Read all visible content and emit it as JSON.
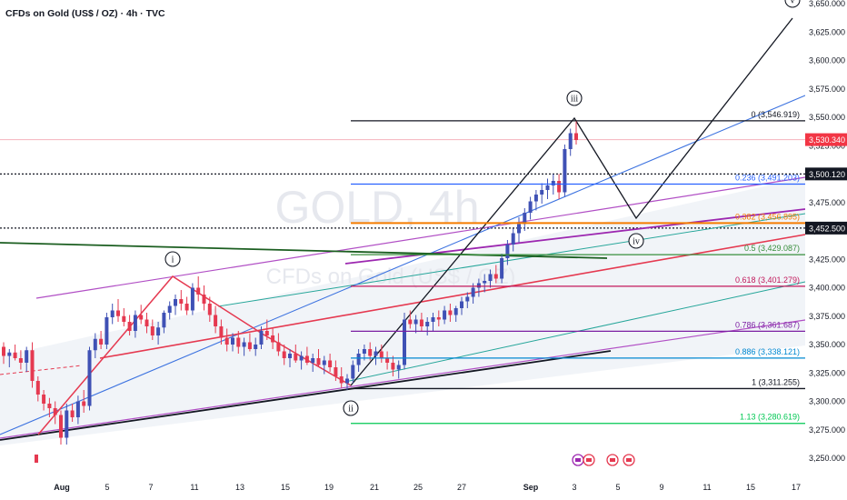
{
  "header": {
    "title": "CFDs on Gold (US$ / OZ) · 4h · TVC"
  },
  "watermark": {
    "big": "GOLD, 4h",
    "small": "CFDs on Gold (US$ / OZ)"
  },
  "colors": {
    "bull": "#3f51b5",
    "bear": "#e53950",
    "fib_line": "#131722",
    "wave_up": "#131722",
    "red_zigzag": "#e53950"
  },
  "chart_data": {
    "type": "candlestick",
    "title": "CFDs on Gold (US$ / OZ) · 4h · TVC",
    "ylim": [
      3237,
      3662
    ],
    "y_ticks": [
      3250,
      3275,
      3300,
      3325,
      3350,
      3375,
      3400,
      3425,
      3450,
      3475,
      3500,
      3525,
      3550,
      3575,
      3600,
      3625,
      3650
    ],
    "y_tick_labels": [
      "3,250.000",
      "3,275.000",
      "3,300.000",
      "3,325.000",
      "3,350.000",
      "3,375.000",
      "3,400.000",
      "3,425.000",
      "3,450.000",
      "3,475.000",
      "3,500.000",
      "3,525.000",
      "3,550.000",
      "3,575.000",
      "3,600.000",
      "3,625.000",
      "3,650.000"
    ],
    "x_ticks": [
      "Aug",
      "5",
      "7",
      "11",
      "13",
      "15",
      "19",
      "21",
      "25",
      "27",
      "Sep",
      "3",
      "5",
      "9",
      "11",
      "15",
      "17"
    ],
    "price_labels": [
      {
        "value": 3530.34,
        "text": "3,530.340",
        "style": "red"
      },
      {
        "value": 3500.12,
        "text": "3,500.120",
        "style": "dark"
      },
      {
        "value": 3452.5,
        "text": "3,452.500",
        "style": "dark"
      }
    ],
    "fibonacci": [
      {
        "ratio": "0",
        "value": 3546.919,
        "label": "0 (3,546.919)",
        "color": "#131722"
      },
      {
        "ratio": "0.236",
        "value": 3491.203,
        "label": "0.236 (3,491.203)",
        "color": "#2962ff"
      },
      {
        "ratio": "0.382",
        "value": 3456.895,
        "label": "0.382 (3,456.895)",
        "color": "#f57c00"
      },
      {
        "ratio": "0.5",
        "value": 3429.087,
        "label": "0.5 (3,429.087)",
        "color": "#388e3c"
      },
      {
        "ratio": "0.618",
        "value": 3401.279,
        "label": "0.618 (3,401.279)",
        "color": "#c2185b"
      },
      {
        "ratio": "0.786",
        "value": 3361.687,
        "label": "0.786 (3,361.687)",
        "color": "#7b1fa2"
      },
      {
        "ratio": "0.886",
        "value": 3338.121,
        "label": "0.886 (3,338.121)",
        "color": "#0288d1"
      },
      {
        "ratio": "1",
        "value": 3311.255,
        "label": "1 (3,311.255)",
        "color": "#131722"
      },
      {
        "ratio": "1.13",
        "value": 3280.619,
        "label": "1.13 (3,280.619)",
        "color": "#00c853"
      }
    ],
    "wave_labels": [
      "i",
      "ii",
      "iii",
      "iv",
      "v"
    ],
    "candles_ohlc": [
      [
        3348,
        3352,
        3333,
        3340
      ],
      [
        3340,
        3346,
        3330,
        3343
      ],
      [
        3343,
        3350,
        3336,
        3338
      ],
      [
        3338,
        3345,
        3328,
        3334
      ],
      [
        3334,
        3348,
        3326,
        3345
      ],
      [
        3345,
        3352,
        3312,
        3318
      ],
      [
        3318,
        3322,
        3300,
        3306
      ],
      [
        3306,
        3310,
        3292,
        3298
      ],
      [
        3298,
        3303,
        3286,
        3294
      ],
      [
        3294,
        3300,
        3280,
        3288
      ],
      [
        3288,
        3292,
        3262,
        3268
      ],
      [
        3268,
        3298,
        3262,
        3292
      ],
      [
        3292,
        3298,
        3282,
        3286
      ],
      [
        3286,
        3305,
        3280,
        3300
      ],
      [
        3300,
        3310,
        3290,
        3296
      ],
      [
        3296,
        3348,
        3292,
        3345
      ],
      [
        3345,
        3360,
        3338,
        3355
      ],
      [
        3355,
        3362,
        3346,
        3350
      ],
      [
        3350,
        3378,
        3346,
        3374
      ],
      [
        3374,
        3386,
        3368,
        3380
      ],
      [
        3380,
        3390,
        3370,
        3375
      ],
      [
        3375,
        3382,
        3366,
        3370
      ],
      [
        3370,
        3376,
        3358,
        3362
      ],
      [
        3362,
        3380,
        3356,
        3376
      ],
      [
        3376,
        3385,
        3368,
        3372
      ],
      [
        3372,
        3378,
        3360,
        3366
      ],
      [
        3366,
        3372,
        3354,
        3358
      ],
      [
        3358,
        3370,
        3350,
        3365
      ],
      [
        3365,
        3380,
        3360,
        3378
      ],
      [
        3378,
        3388,
        3372,
        3384
      ],
      [
        3384,
        3394,
        3376,
        3390
      ],
      [
        3390,
        3398,
        3380,
        3386
      ],
      [
        3386,
        3392,
        3376,
        3380
      ],
      [
        3380,
        3404,
        3376,
        3400
      ],
      [
        3400,
        3410,
        3388,
        3394
      ],
      [
        3394,
        3402,
        3380,
        3386
      ],
      [
        3386,
        3392,
        3370,
        3376
      ],
      [
        3376,
        3384,
        3360,
        3366
      ],
      [
        3366,
        3372,
        3350,
        3356
      ],
      [
        3356,
        3364,
        3344,
        3350
      ],
      [
        3350,
        3360,
        3344,
        3356
      ],
      [
        3356,
        3362,
        3342,
        3348
      ],
      [
        3348,
        3356,
        3340,
        3352
      ],
      [
        3352,
        3360,
        3344,
        3346
      ],
      [
        3346,
        3356,
        3340,
        3350
      ],
      [
        3350,
        3366,
        3346,
        3362
      ],
      [
        3362,
        3372,
        3354,
        3358
      ],
      [
        3358,
        3364,
        3346,
        3352
      ],
      [
        3352,
        3360,
        3340,
        3344
      ],
      [
        3344,
        3350,
        3332,
        3338
      ],
      [
        3338,
        3346,
        3330,
        3342
      ],
      [
        3342,
        3350,
        3334,
        3336
      ],
      [
        3336,
        3344,
        3328,
        3340
      ],
      [
        3340,
        3348,
        3332,
        3334
      ],
      [
        3334,
        3342,
        3326,
        3338
      ],
      [
        3338,
        3346,
        3330,
        3332
      ],
      [
        3332,
        3340,
        3324,
        3336
      ],
      [
        3336,
        3342,
        3326,
        3330
      ],
      [
        3330,
        3336,
        3318,
        3322
      ],
      [
        3322,
        3330,
        3312,
        3316
      ],
      [
        3316,
        3324,
        3310,
        3320
      ],
      [
        3320,
        3336,
        3316,
        3332
      ],
      [
        3332,
        3346,
        3326,
        3342
      ],
      [
        3342,
        3350,
        3336,
        3346
      ],
      [
        3346,
        3352,
        3336,
        3340
      ],
      [
        3340,
        3348,
        3332,
        3344
      ],
      [
        3344,
        3350,
        3334,
        3338
      ],
      [
        3338,
        3344,
        3328,
        3334
      ],
      [
        3334,
        3340,
        3322,
        3328
      ],
      [
        3328,
        3336,
        3320,
        3332
      ],
      [
        3332,
        3378,
        3328,
        3372
      ],
      [
        3372,
        3380,
        3364,
        3368
      ],
      [
        3368,
        3376,
        3360,
        3372
      ],
      [
        3372,
        3378,
        3362,
        3366
      ],
      [
        3366,
        3374,
        3358,
        3370
      ],
      [
        3370,
        3378,
        3362,
        3374
      ],
      [
        3374,
        3380,
        3366,
        3372
      ],
      [
        3372,
        3384,
        3368,
        3380
      ],
      [
        3380,
        3386,
        3370,
        3376
      ],
      [
        3376,
        3384,
        3370,
        3382
      ],
      [
        3382,
        3392,
        3376,
        3388
      ],
      [
        3388,
        3396,
        3382,
        3392
      ],
      [
        3392,
        3404,
        3386,
        3400
      ],
      [
        3400,
        3408,
        3392,
        3404
      ],
      [
        3404,
        3412,
        3396,
        3406
      ],
      [
        3406,
        3416,
        3400,
        3412
      ],
      [
        3412,
        3420,
        3404,
        3408
      ],
      [
        3408,
        3430,
        3404,
        3426
      ],
      [
        3426,
        3442,
        3420,
        3438
      ],
      [
        3438,
        3452,
        3432,
        3448
      ],
      [
        3448,
        3462,
        3440,
        3456
      ],
      [
        3456,
        3470,
        3450,
        3466
      ],
      [
        3466,
        3480,
        3460,
        3476
      ],
      [
        3476,
        3486,
        3468,
        3482
      ],
      [
        3482,
        3492,
        3474,
        3486
      ],
      [
        3486,
        3496,
        3478,
        3490
      ],
      [
        3490,
        3500,
        3482,
        3494
      ],
      [
        3494,
        3500,
        3478,
        3484
      ],
      [
        3484,
        3526,
        3480,
        3522
      ],
      [
        3522,
        3540,
        3516,
        3536
      ],
      [
        3536,
        3547,
        3526,
        3530
      ]
    ]
  }
}
